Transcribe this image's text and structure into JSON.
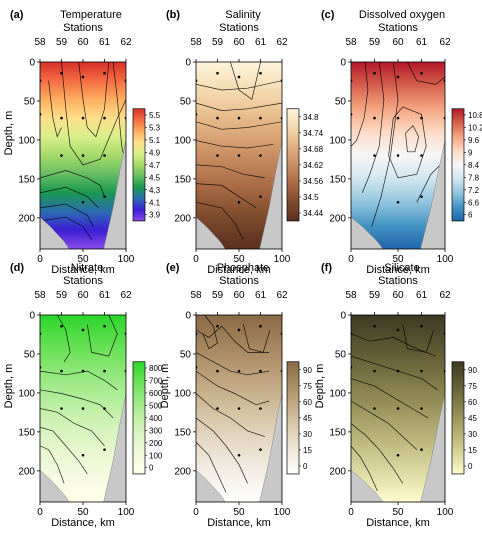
{
  "chart_data": [
    {
      "id": "a",
      "type": "heatmap",
      "letter": "(a)",
      "title": "Temperature",
      "top_axis_label": "Stations",
      "stations": [
        "58",
        "59",
        "60",
        "61",
        "62"
      ],
      "station_distance_km": [
        0,
        25,
        50,
        75,
        100
      ],
      "xlabel": "Distance, km",
      "ylabel": "Depth, m",
      "xlim": [
        0,
        100
      ],
      "ylim": [
        0,
        240
      ],
      "x_ticks": [
        0,
        50,
        100
      ],
      "y_ticks": [
        0,
        50,
        100,
        150,
        200
      ],
      "colorbar_ticks": [
        "5.5",
        "5.3",
        "5.1",
        "4.9",
        "4.7",
        "4.5",
        "4.3",
        "4.1",
        "3.9"
      ],
      "colorbar_colors": [
        "#d73027",
        "#f46d43",
        "#fdae61",
        "#fee08b",
        "#d9ef8b",
        "#a6d96a",
        "#66bd63",
        "#1a9850",
        "#2b6cb0",
        "#3b1fd6",
        "#8a4ce8"
      ],
      "contour_levels": [
        5.5,
        5.3,
        5.1,
        4.9,
        4.7,
        4.5,
        4.3,
        4.1,
        3.9
      ]
    },
    {
      "id": "b",
      "type": "heatmap",
      "letter": "(b)",
      "title": "Salinity",
      "top_axis_label": "Stations",
      "stations": [
        "58",
        "59",
        "60",
        "61",
        "62"
      ],
      "station_distance_km": [
        0,
        25,
        50,
        75,
        100
      ],
      "xlabel": "Distance, km",
      "ylabel": "",
      "xlim": [
        0,
        100
      ],
      "ylim": [
        0,
        240
      ],
      "x_ticks": [
        0,
        50,
        100
      ],
      "y_ticks": [
        0,
        50,
        100,
        150,
        200
      ],
      "colorbar_ticks": [
        "34.8",
        "34.74",
        "34.68",
        "34.62",
        "34.56",
        "34.5",
        "34.44"
      ],
      "colorbar_colors": [
        "#fdf5dc",
        "#f4d8ad",
        "#e2b383",
        "#c98e61",
        "#a96a45",
        "#7d4a2d",
        "#5a3020"
      ],
      "contour_levels": [
        34.8,
        34.74,
        34.68,
        34.62,
        34.56,
        34.5,
        34.44
      ]
    },
    {
      "id": "c",
      "type": "heatmap",
      "letter": "(c)",
      "title": "Dissolved oxygen",
      "top_axis_label": "Stations",
      "stations": [
        "58",
        "59",
        "60",
        "61",
        "62"
      ],
      "station_distance_km": [
        0,
        25,
        50,
        75,
        100
      ],
      "xlabel": "Distance, km",
      "ylabel": "",
      "xlim": [
        0,
        100
      ],
      "ylim": [
        0,
        240
      ],
      "x_ticks": [
        0,
        50,
        100
      ],
      "y_ticks": [
        0,
        50,
        100,
        150,
        200
      ],
      "colorbar_ticks": [
        "10.8",
        "10.2",
        "9.6",
        "9",
        "8.4",
        "7.8",
        "7.2",
        "6.6",
        "6"
      ],
      "colorbar_colors": [
        "#b2182b",
        "#d6604d",
        "#f4a582",
        "#fddbc7",
        "#f7f7f7",
        "#d1e5f0",
        "#92c5de",
        "#4393c3",
        "#2166ac"
      ],
      "contour_levels": [
        10.8,
        10.2,
        9.6,
        9,
        8.4,
        7.8,
        7.2,
        6.6,
        6
      ]
    },
    {
      "id": "d",
      "type": "heatmap",
      "letter": "(d)",
      "title": "Nitrate",
      "top_axis_label": "Stations",
      "stations": [
        "58",
        "59",
        "60",
        "61",
        "62"
      ],
      "station_distance_km": [
        0,
        25,
        50,
        75,
        100
      ],
      "xlabel": "Distance, km",
      "ylabel": "Depth, m",
      "xlim": [
        0,
        100
      ],
      "ylim": [
        0,
        240
      ],
      "x_ticks": [
        0,
        50,
        100
      ],
      "y_ticks": [
        0,
        50,
        100,
        150,
        200
      ],
      "colorbar_ticks": [
        "800",
        "700",
        "600",
        "500",
        "400",
        "300",
        "200",
        "100",
        "0"
      ],
      "colorbar_colors": [
        "#2ad52a",
        "#58dd4a",
        "#7fe46a",
        "#a1ea8a",
        "#bfefa6",
        "#d8f4bf",
        "#eaf8d2",
        "#f7fbe2",
        "#ffffe8"
      ],
      "contour_levels": [
        800,
        700,
        600,
        500,
        400,
        300,
        200,
        100,
        0
      ]
    },
    {
      "id": "e",
      "type": "heatmap",
      "letter": "(e)",
      "title": "Phosphate",
      "top_axis_label": "Stations",
      "stations": [
        "58",
        "59",
        "60",
        "61",
        "62"
      ],
      "station_distance_km": [
        0,
        25,
        50,
        75,
        100
      ],
      "xlabel": "Distance, km",
      "ylabel": "Depth, m",
      "xlim": [
        0,
        100
      ],
      "ylim": [
        0,
        240
      ],
      "x_ticks": [
        0,
        50,
        100
      ],
      "y_ticks": [
        0,
        50,
        100,
        150,
        200
      ],
      "colorbar_ticks": [
        "90",
        "75",
        "60",
        "45",
        "30",
        "15",
        "0"
      ],
      "colorbar_colors": [
        "#8a6a46",
        "#a4865f",
        "#bca27d",
        "#d2bf9f",
        "#e4d8c3",
        "#f2ede3",
        "#ffffff"
      ],
      "contour_levels": [
        90,
        75,
        60,
        45,
        30,
        15,
        0
      ]
    },
    {
      "id": "f",
      "type": "heatmap",
      "letter": "(f)",
      "title": "Silicate",
      "top_axis_label": "Stations",
      "stations": [
        "58",
        "59",
        "60",
        "61",
        "62"
      ],
      "station_distance_km": [
        0,
        25,
        50,
        75,
        100
      ],
      "xlabel": "Distance, km",
      "ylabel": "Depth, m",
      "xlim": [
        0,
        100
      ],
      "ylim": [
        0,
        240
      ],
      "x_ticks": [
        0,
        50,
        100
      ],
      "y_ticks": [
        0,
        50,
        100,
        150,
        200
      ],
      "colorbar_ticks": [
        "90",
        "75",
        "60",
        "45",
        "30",
        "15",
        "0"
      ],
      "colorbar_colors": [
        "#3d3a22",
        "#5a5632",
        "#7a7545",
        "#9a955d",
        "#bbb67c",
        "#dcd8a2",
        "#fffccd"
      ],
      "contour_levels": [
        90,
        75,
        60,
        45,
        30,
        15,
        0
      ]
    }
  ]
}
